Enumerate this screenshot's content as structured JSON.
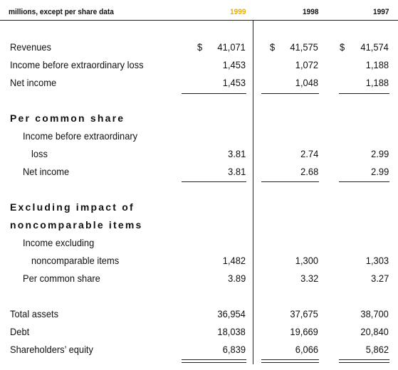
{
  "header": {
    "caption": "millions, except per share data",
    "years": [
      "1999",
      "1998",
      "1997"
    ]
  },
  "rows": [
    {
      "label": "Revenues",
      "currency": "$",
      "values": [
        "41,071",
        "41,575",
        "41,574"
      ]
    },
    {
      "label": "Income before extraordinary loss",
      "values": [
        "1,453",
        "1,072",
        "1,188"
      ]
    },
    {
      "label": "Net income",
      "values": [
        "1,453",
        "1,048",
        "1,188"
      ]
    },
    {
      "label": "Per common share"
    },
    {
      "label": "Income before extraordinary"
    },
    {
      "label": "loss",
      "values": [
        "3.81",
        "2.74",
        "2.99"
      ]
    },
    {
      "label": "Net income",
      "values": [
        "3.81",
        "2.68",
        "2.99"
      ]
    },
    {
      "label": "Excluding impact of"
    },
    {
      "label": "noncomparable items"
    },
    {
      "label": "Income excluding"
    },
    {
      "label": "noncomparable items",
      "values": [
        "1,482",
        "1,300",
        "1,303"
      ]
    },
    {
      "label": "Per common share",
      "values": [
        "3.89",
        "3.32",
        "3.27"
      ]
    },
    {
      "label": "Total assets",
      "values": [
        "36,954",
        "37,675",
        "38,700"
      ]
    },
    {
      "label": "Debt",
      "values": [
        "18,038",
        "19,669",
        "20,840"
      ]
    },
    {
      "label": "Shareholders’ equity",
      "values": [
        "6,839",
        "6,066",
        "5,862"
      ]
    }
  ]
}
